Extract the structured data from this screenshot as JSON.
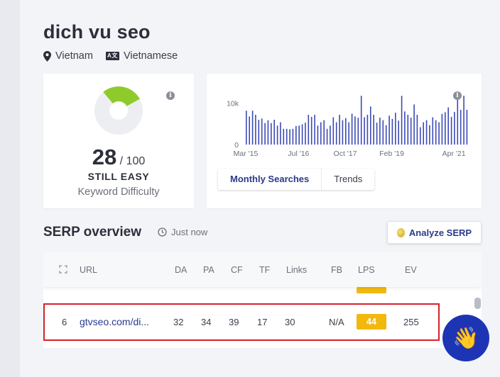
{
  "keyword": {
    "title": "dich vu seo",
    "location": "Vietnam",
    "language_icon": "A文",
    "language": "Vietnamese"
  },
  "difficulty": {
    "score": "28",
    "max": "/ 100",
    "level": "STILL EASY",
    "label": "Keyword Difficulty",
    "info_icon": "i",
    "gauge_fraction": 0.28,
    "gauge_color": "#8ecb2a"
  },
  "searches_chart": {
    "info_icon": "i",
    "tabs": [
      "Monthly Searches",
      "Trends"
    ],
    "chart_data": {
      "type": "bar",
      "x_ticks": [
        "Mar '15",
        "Jul '16",
        "Oct '17",
        "Feb '19",
        "Apr '21"
      ],
      "y_ticks": [
        "10k",
        "0"
      ],
      "ylim": [
        0,
        12000
      ],
      "bar_color": "#3d4ab5",
      "values": [
        8200,
        6800,
        8200,
        7200,
        6000,
        6300,
        5200,
        5900,
        5200,
        6000,
        4600,
        5400,
        3800,
        3800,
        3700,
        3800,
        4500,
        4600,
        4900,
        5300,
        7200,
        6700,
        7200,
        4600,
        5400,
        5900,
        3800,
        4600,
        6600,
        5400,
        7200,
        5900,
        6400,
        5400,
        7500,
        6800,
        6500,
        11800,
        6600,
        7200,
        9200,
        7200,
        5300,
        6500,
        5900,
        4700,
        7000,
        6200,
        7700,
        5800,
        11800,
        8000,
        7200,
        6500,
        9700,
        7200,
        4200,
        5400,
        5900,
        4700,
        6600,
        5900,
        5400,
        7400,
        7800,
        9000,
        6700,
        7900,
        11000,
        8400,
        11800,
        8400
      ]
    }
  },
  "serp": {
    "title": "SERP overview",
    "time": "Just now",
    "analyze_button": "Analyze SERP",
    "columns": [
      "URL",
      "DA",
      "PA",
      "CF",
      "TF",
      "Links",
      "FB",
      "LPS",
      "EV"
    ],
    "row": {
      "rank": "6",
      "url": "gtvseo.com/di...",
      "da": "32",
      "pa": "34",
      "cf": "39",
      "tf": "17",
      "links": "30",
      "fb": "N/A",
      "lps": "44",
      "ev": "255"
    }
  },
  "chat": {
    "icon": "👋"
  }
}
